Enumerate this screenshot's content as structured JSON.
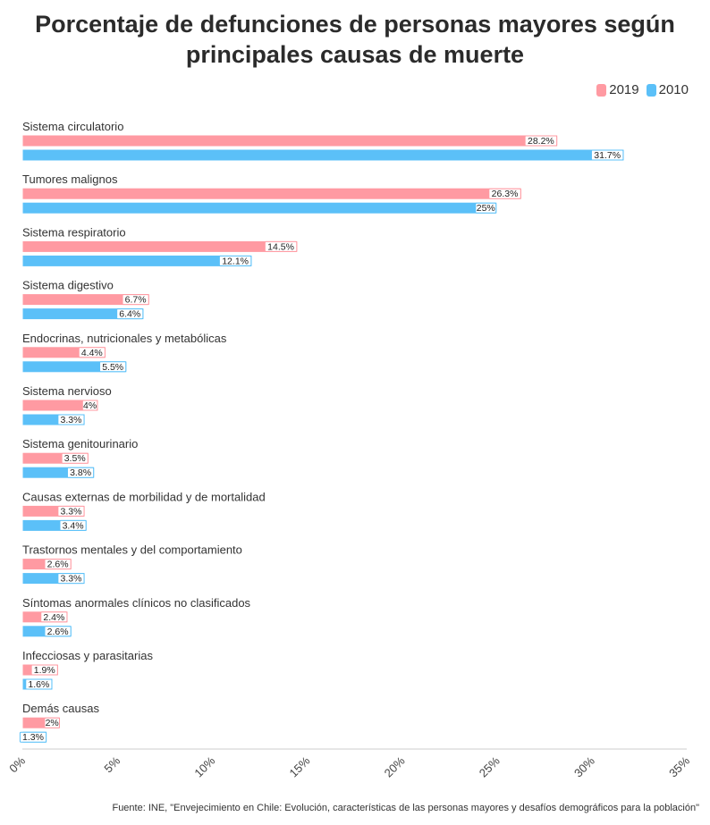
{
  "chart_data": {
    "type": "bar",
    "orientation": "horizontal",
    "title": "Porcentaje de defunciones de personas mayores según principales causas de muerte",
    "categories": [
      "Sistema circulatorio",
      "Tumores malignos",
      "Sistema respiratorio",
      "Sistema digestivo",
      "Endocrinas, nutricionales y metabólicas",
      "Sistema nervioso",
      "Sistema genitourinario",
      "Causas externas de morbilidad y de mortalidad",
      "Trastornos mentales y del comportamiento",
      "Síntomas anormales clínicos no clasificados",
      "Infecciosas y parasitarias",
      "Demás causas"
    ],
    "series": [
      {
        "name": "2019",
        "color": "#ff9aa2",
        "values": [
          28.2,
          26.3,
          14.5,
          6.7,
          4.4,
          4,
          3.5,
          3.3,
          2.6,
          2.4,
          1.9,
          2
        ],
        "labels": [
          "28.2%",
          "26.3%",
          "14.5%",
          "6.7%",
          "4.4%",
          "4%",
          "3.5%",
          "3.3%",
          "2.6%",
          "2.4%",
          "1.9%",
          "2%"
        ]
      },
      {
        "name": "2010",
        "color": "#5bc0f8",
        "values": [
          31.7,
          25,
          12.1,
          6.4,
          5.5,
          3.3,
          3.8,
          3.4,
          3.3,
          2.6,
          1.6,
          1.3
        ],
        "labels": [
          "31.7%",
          "25%",
          "12.1%",
          "6.4%",
          "5.5%",
          "3.3%",
          "3.8%",
          "3.4%",
          "3.3%",
          "2.6%",
          "1.6%",
          "1.3%"
        ]
      }
    ],
    "xlim": [
      0,
      35
    ],
    "xticks": [
      "0%",
      "5%",
      "10%",
      "15%",
      "20%",
      "25%",
      "30%",
      "35%"
    ],
    "grid": false,
    "legend_position": "top-right"
  },
  "source": "Fuente: INE, \"Envejecimiento en Chile: Evolución, características de las personas mayores y desafíos demográficos para la población\""
}
